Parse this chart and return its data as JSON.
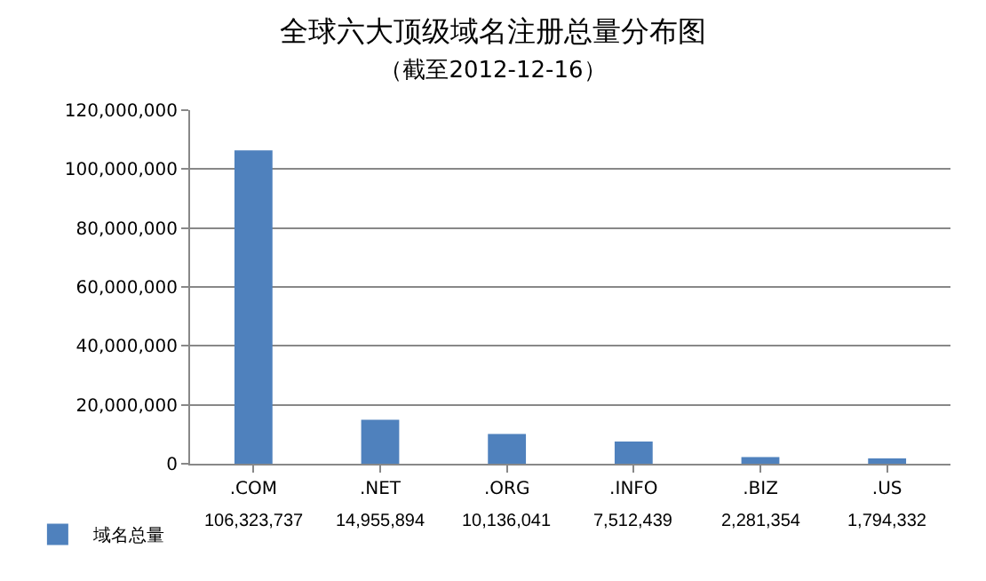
{
  "chart_data": {
    "type": "bar",
    "title": "全球六大顶级域名注册总量分布图",
    "subtitle": "（截至2012-12-16）",
    "categories": [
      ".COM",
      ".NET",
      ".ORG",
      ".INFO",
      ".BIZ",
      ".US"
    ],
    "series": [
      {
        "name": "域名总量",
        "color": "#4f81bd",
        "values": [
          106323737,
          14955894,
          10136041,
          7512439,
          2281354,
          1794332
        ],
        "value_labels": [
          "106,323,737",
          "14,955,894",
          "10,136,041",
          "7,512,439",
          "2,281,354",
          "1,794,332"
        ]
      }
    ],
    "ylim": [
      0,
      120000000
    ],
    "yticks": [
      0,
      {
        "value": 20000000,
        "label": "20,000,000"
      },
      {
        "value": 40000000,
        "label": "40,000,000"
      },
      {
        "value": 60000000,
        "label": "60,000,000"
      },
      {
        "value": 80000000,
        "label": "80,000,000"
      },
      {
        "value": 100000000,
        "label": "100,000,000"
      },
      {
        "value": 120000000,
        "label": "120,000,000"
      }
    ],
    "grid": "y",
    "legend": "bottom left"
  }
}
